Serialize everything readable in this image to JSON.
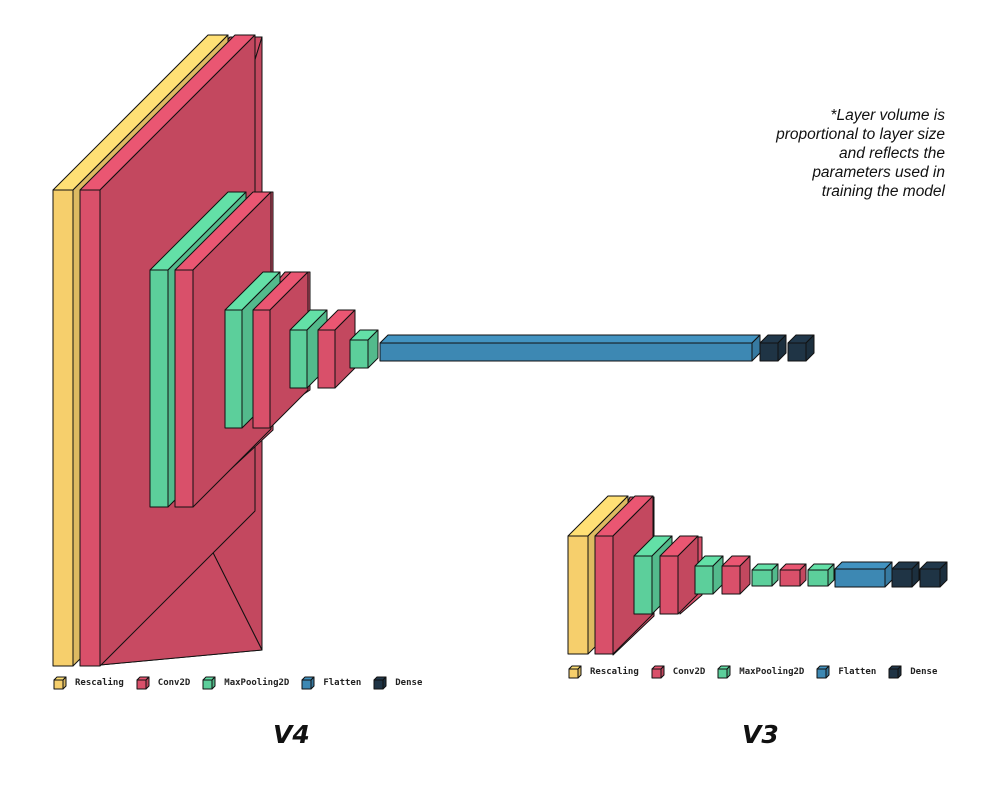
{
  "colors": {
    "Rescaling": "#f6cf6c",
    "Conv2D": "#d9506a",
    "MaxPooling2D": "#5ccf9b",
    "Flatten": "#3d88b3",
    "Dense": "#1f3445"
  },
  "note_lines": [
    "*Layer volume is",
    "proportional to layer size",
    "and reflects the",
    "parameters used in",
    "training the model"
  ],
  "models": [
    {
      "title": "V4",
      "legend": [
        "Rescaling",
        "Conv2D",
        "MaxPooling2D",
        "Flatten",
        "Dense"
      ]
    },
    {
      "title": "V3",
      "legend": [
        "Rescaling",
        "Conv2D",
        "MaxPooling2D",
        "Flatten",
        "Dense"
      ]
    }
  ]
}
